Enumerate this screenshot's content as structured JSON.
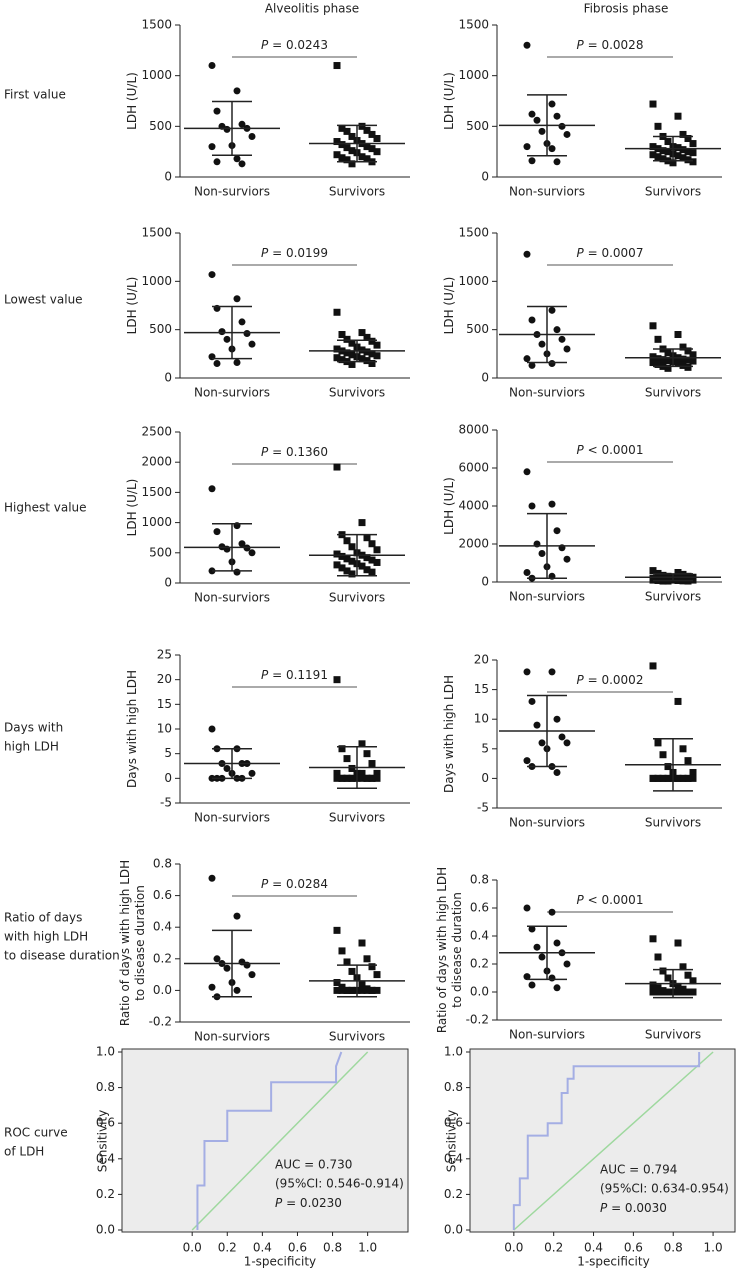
{
  "column_titles": [
    "Alveolitis phase",
    "Fibrosis phase"
  ],
  "row_labels": [
    [
      "First value"
    ],
    [
      "Lowest value"
    ],
    [
      "Highest value"
    ],
    [
      "Days with",
      "high LDH"
    ],
    [
      "Ratio of days",
      "with high LDH",
      "to disease duration"
    ],
    [
      "ROC curve",
      "of LDH"
    ]
  ],
  "chart_data": [
    {
      "type": "dot",
      "ylabel": [
        "LDH (U/L)"
      ],
      "categories": [
        "Non-surviors",
        "Survivors"
      ],
      "ylim": [
        0,
        1500
      ],
      "yticks": [
        0,
        500,
        1000,
        1500
      ],
      "annotation": {
        "symbol": "P",
        "text": "= 0.0243"
      },
      "groups": [
        {
          "marker": "circle",
          "values": [
            1100,
            850,
            650,
            520,
            500,
            480,
            470,
            400,
            310,
            300,
            180,
            150,
            130
          ],
          "mean": 480,
          "sd": 265
        },
        {
          "marker": "square",
          "values": [
            1100,
            500,
            480,
            460,
            450,
            420,
            400,
            380,
            360,
            350,
            330,
            320,
            300,
            290,
            280,
            260,
            250,
            240,
            220,
            200,
            190,
            180,
            170,
            150,
            130
          ],
          "mean": 330,
          "sd": 180
        }
      ]
    },
    {
      "type": "dot",
      "ylabel": [
        "LDH (U/L)"
      ],
      "categories": [
        "Non-surviors",
        "Survivors"
      ],
      "ylim": [
        0,
        1500
      ],
      "yticks": [
        0,
        500,
        1000,
        1500
      ],
      "annotation": {
        "symbol": "P",
        "text": "= 0.0028"
      },
      "groups": [
        {
          "marker": "circle",
          "values": [
            1300,
            720,
            620,
            600,
            560,
            500,
            450,
            420,
            330,
            300,
            280,
            160,
            150
          ],
          "mean": 510,
          "sd": 300
        },
        {
          "marker": "square",
          "values": [
            720,
            600,
            500,
            420,
            400,
            380,
            350,
            330,
            300,
            300,
            290,
            280,
            270,
            260,
            250,
            250,
            240,
            230,
            220,
            210,
            200,
            190,
            180,
            170,
            160,
            150,
            140
          ],
          "mean": 280,
          "sd": 120
        }
      ]
    },
    {
      "type": "dot",
      "ylabel": [
        "LDH (U/L)"
      ],
      "categories": [
        "Non-surviors",
        "Survivors"
      ],
      "ylim": [
        0,
        1500
      ],
      "yticks": [
        0,
        500,
        1000,
        1500
      ],
      "annotation": {
        "symbol": "P",
        "text": "= 0.0199"
      },
      "groups": [
        {
          "marker": "circle",
          "values": [
            1070,
            820,
            720,
            580,
            480,
            460,
            400,
            350,
            300,
            220,
            160,
            150
          ],
          "mean": 470,
          "sd": 270
        },
        {
          "marker": "square",
          "values": [
            680,
            470,
            450,
            420,
            400,
            380,
            360,
            340,
            320,
            300,
            290,
            280,
            270,
            260,
            250,
            240,
            230,
            220,
            210,
            200,
            190,
            180,
            170,
            150,
            140
          ],
          "mean": 280,
          "sd": 110
        }
      ]
    },
    {
      "type": "dot",
      "ylabel": [
        "LDH (U/L)"
      ],
      "categories": [
        "Non-surviors",
        "Survivors"
      ],
      "ylim": [
        0,
        1500
      ],
      "yticks": [
        0,
        500,
        1000,
        1500
      ],
      "annotation": {
        "symbol": "P",
        "text": "= 0.0007"
      },
      "groups": [
        {
          "marker": "circle",
          "values": [
            1280,
            700,
            600,
            500,
            450,
            400,
            350,
            300,
            250,
            200,
            150,
            130
          ],
          "mean": 450,
          "sd": 290
        },
        {
          "marker": "square",
          "values": [
            540,
            450,
            400,
            320,
            300,
            280,
            260,
            240,
            230,
            220,
            210,
            200,
            195,
            190,
            185,
            180,
            175,
            170,
            160,
            150,
            140,
            130,
            120,
            110,
            100
          ],
          "mean": 210,
          "sd": 90
        }
      ]
    },
    {
      "type": "dot",
      "ylabel": [
        "LDH (U/L)"
      ],
      "categories": [
        "Non-surviors",
        "Survivors"
      ],
      "ylim": [
        0,
        2500
      ],
      "yticks": [
        0,
        500,
        1000,
        1500,
        2000,
        2500
      ],
      "annotation": {
        "symbol": "P",
        "text": "= 0.1360"
      },
      "groups": [
        {
          "marker": "circle",
          "values": [
            1560,
            950,
            850,
            650,
            600,
            580,
            560,
            500,
            350,
            200,
            180
          ],
          "mean": 590,
          "sd": 390
        },
        {
          "marker": "square",
          "values": [
            1920,
            1000,
            800,
            750,
            700,
            650,
            600,
            550,
            500,
            480,
            460,
            440,
            420,
            400,
            380,
            360,
            340,
            320,
            300,
            280,
            250,
            220,
            200,
            180,
            150
          ],
          "mean": 460,
          "sd": 340
        }
      ]
    },
    {
      "type": "dot",
      "ylabel": [
        "LDH (U/L)"
      ],
      "categories": [
        "Non-surviors",
        "Survivors"
      ],
      "ylim": [
        0,
        8000
      ],
      "yticks": [
        0,
        2000,
        4000,
        6000,
        8000
      ],
      "annotation": {
        "symbol": "P",
        "text": "< 0.0001"
      },
      "groups": [
        {
          "marker": "circle",
          "values": [
            5800,
            4100,
            4000,
            2700,
            2000,
            1800,
            1500,
            1200,
            800,
            500,
            300,
            200
          ],
          "mean": 1900,
          "sd": 1700
        },
        {
          "marker": "square",
          "values": [
            600,
            500,
            450,
            400,
            350,
            300,
            300,
            250,
            250,
            200,
            200,
            200,
            150,
            150,
            150,
            100,
            100,
            100,
            100,
            80,
            80,
            60,
            50,
            50,
            50
          ],
          "mean": 250,
          "sd": 180
        }
      ]
    },
    {
      "type": "dot",
      "ylabel": [
        "Days with high LDH"
      ],
      "categories": [
        "Non-surviors",
        "Survivors"
      ],
      "ylim": [
        -5,
        25
      ],
      "yticks": [
        -5,
        0,
        5,
        10,
        15,
        20,
        25
      ],
      "annotation": {
        "symbol": "P",
        "text": "= 0.1191"
      },
      "groups": [
        {
          "marker": "circle",
          "values": [
            10,
            6,
            6,
            3,
            3,
            3,
            2,
            1,
            1,
            0,
            0,
            0,
            0,
            0
          ],
          "mean": 3,
          "sd": 3
        },
        {
          "marker": "square",
          "values": [
            20,
            7,
            6,
            5,
            4,
            3,
            2,
            1,
            1,
            1,
            1,
            0,
            0,
            0,
            0,
            0,
            0,
            0,
            0,
            0,
            0,
            0,
            0,
            0,
            0
          ],
          "mean": 2.2,
          "sd": 4.2
        }
      ]
    },
    {
      "type": "dot",
      "ylabel": [
        "Days with high LDH"
      ],
      "categories": [
        "Non-surviors",
        "Survivors"
      ],
      "ylim": [
        -5,
        20
      ],
      "yticks": [
        -5,
        0,
        5,
        10,
        15,
        20
      ],
      "annotation": {
        "symbol": "P",
        "text": "= 0.0002"
      },
      "groups": [
        {
          "marker": "circle",
          "values": [
            18,
            18,
            13,
            10,
            9,
            7,
            6,
            6,
            5,
            3,
            2,
            2,
            1
          ],
          "mean": 8,
          "sd": 6
        },
        {
          "marker": "square",
          "values": [
            19,
            13,
            6,
            5,
            4,
            3,
            2,
            1,
            1,
            0,
            0,
            0,
            0,
            0,
            0,
            0,
            0,
            0,
            0,
            0,
            0,
            0,
            0,
            0,
            0
          ],
          "mean": 2.3,
          "sd": 4.4
        }
      ]
    },
    {
      "type": "dot",
      "ylabel": [
        "Ratio of days with high LDH",
        "to disease duration"
      ],
      "categories": [
        "Non-surviors",
        "Survivors"
      ],
      "ylim": [
        -0.2,
        0.8
      ],
      "yticks": [
        -0.2,
        {
          "value": 0,
          "label": "0.0"
        },
        0.2,
        0.4,
        0.6,
        0.8
      ],
      "annotation": {
        "symbol": "P",
        "text": "= 0.0284"
      },
      "groups": [
        {
          "marker": "circle",
          "values": [
            0.71,
            0.47,
            0.2,
            0.18,
            0.17,
            0.16,
            0.14,
            0.1,
            0.05,
            0.02,
            0,
            -0.04
          ],
          "mean": 0.17,
          "sd": 0.21
        },
        {
          "marker": "square",
          "values": [
            0.38,
            0.3,
            0.25,
            0.2,
            0.18,
            0.15,
            0.12,
            0.1,
            0.08,
            0.05,
            0.04,
            0.02,
            0.01,
            0,
            0,
            0,
            0,
            0,
            0,
            0,
            0,
            0,
            0,
            0,
            0
          ],
          "mean": 0.06,
          "sd": 0.1
        }
      ]
    },
    {
      "type": "dot",
      "ylabel": [
        "Ratio of days with high LDH",
        "to disease duration"
      ],
      "categories": [
        "Non-surviors",
        "Survivors"
      ],
      "ylim": [
        -0.2,
        0.8
      ],
      "yticks": [
        -0.2,
        {
          "value": 0,
          "label": "0.0"
        },
        0.2,
        0.4,
        0.6,
        0.8
      ],
      "annotation": {
        "symbol": "P",
        "text": "< 0.0001"
      },
      "groups": [
        {
          "marker": "circle",
          "values": [
            0.6,
            0.57,
            0.45,
            0.35,
            0.32,
            0.28,
            0.25,
            0.2,
            0.15,
            0.11,
            0.1,
            0.05,
            0.03
          ],
          "mean": 0.28,
          "sd": 0.19
        },
        {
          "marker": "square",
          "values": [
            0.38,
            0.35,
            0.25,
            0.18,
            0.15,
            0.12,
            0.1,
            0.08,
            0.06,
            0.05,
            0.04,
            0.03,
            0.02,
            0.01,
            0,
            0,
            0,
            0,
            0,
            0,
            0,
            0,
            0,
            0,
            0
          ],
          "mean": 0.06,
          "sd": 0.1
        }
      ]
    },
    {
      "type": "roc",
      "xlabel": "1-specificity",
      "ylabel": "Sensitivity",
      "xlim": [
        -0.4,
        1.23
      ],
      "ylim": [
        0,
        1
      ],
      "xticks": [
        {
          "value": 0,
          "label": "0.0"
        },
        0.2,
        0.4,
        0.6,
        0.8,
        {
          "value": 1,
          "label": "1.0"
        }
      ],
      "yticks": [
        {
          "value": 0,
          "label": "0.0"
        },
        0.2,
        0.4,
        0.6,
        0.8,
        {
          "value": 1,
          "label": "1.0"
        }
      ],
      "x": [
        0.03,
        0.03,
        0.07,
        0.07,
        0.2,
        0.2,
        0.45,
        0.45,
        0.82,
        0.82,
        0.85
      ],
      "values": [
        0,
        0.25,
        0.25,
        0.5,
        0.5,
        0.67,
        0.67,
        0.83,
        0.83,
        0.92,
        1
      ],
      "color": "#a4aee4",
      "reference": {
        "x": [
          0,
          1
        ],
        "values": [
          0,
          1
        ],
        "color": "#9ed89e"
      },
      "annotations": [
        "AUC = 0.730",
        "(95%CI: 0.546-0.914)",
        {
          "symbol": "P",
          "text": "= 0.0230"
        }
      ]
    },
    {
      "type": "roc",
      "xlabel": "1-specificity",
      "ylabel": "Sensitivity",
      "xlim": [
        -0.22,
        1.11
      ],
      "ylim": [
        0,
        1
      ],
      "xticks": [
        {
          "value": 0,
          "label": "0.0"
        },
        0.2,
        0.4,
        0.6,
        0.8,
        {
          "value": 1,
          "label": "1.0"
        }
      ],
      "yticks": [
        {
          "value": 0,
          "label": "0.0"
        },
        0.2,
        0.4,
        0.6,
        0.8,
        {
          "value": 1,
          "label": "1.0"
        }
      ],
      "x": [
        0,
        0,
        0.03,
        0.03,
        0.07,
        0.07,
        0.17,
        0.17,
        0.24,
        0.24,
        0.27,
        0.27,
        0.3,
        0.3,
        0.93,
        0.93
      ],
      "values": [
        0,
        0.14,
        0.14,
        0.29,
        0.29,
        0.53,
        0.53,
        0.6,
        0.6,
        0.77,
        0.77,
        0.85,
        0.85,
        0.92,
        0.92,
        1
      ],
      "color": "#a4aee4",
      "reference": {
        "x": [
          0,
          1
        ],
        "values": [
          0,
          1
        ],
        "color": "#9ed89e"
      },
      "annotations": [
        "AUC = 0.794",
        "(95%CI: 0.634-0.954)",
        {
          "symbol": "P",
          "text": "= 0.0030"
        }
      ]
    }
  ]
}
